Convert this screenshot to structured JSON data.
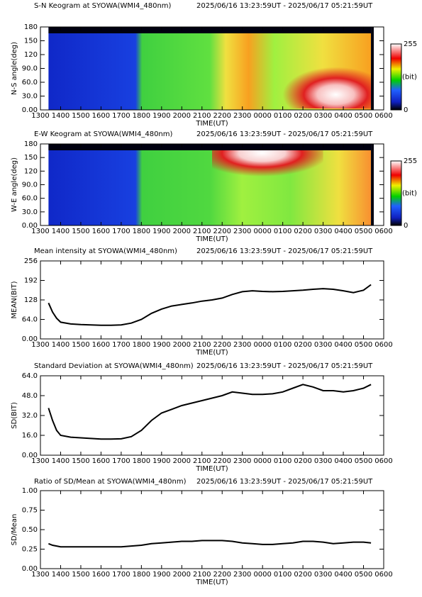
{
  "chart_data": [
    {
      "type": "keogram",
      "title": "S-N Keogram at SYOWA(WMI4_480nm)",
      "subtitle": "2025/06/16 13:23:59UT - 2025/06/17 05:21:59UT",
      "xlabel": "TIME(UT)",
      "ylabel": "N-S angle(deg)",
      "xlim": [
        13,
        30
      ],
      "xticks": [
        {
          "value": 13,
          "label": "1300"
        },
        {
          "value": 14,
          "label": "1400"
        },
        {
          "value": 15,
          "label": "1500"
        },
        {
          "value": 16,
          "label": "1600"
        },
        {
          "value": 17,
          "label": "1700"
        },
        {
          "value": 18,
          "label": "1800"
        },
        {
          "value": 19,
          "label": "1900"
        },
        {
          "value": 20,
          "label": "2000"
        },
        {
          "value": 21,
          "label": "2100"
        },
        {
          "value": 22,
          "label": "2200"
        },
        {
          "value": 23,
          "label": "2300"
        },
        {
          "value": 24,
          "label": "0000"
        },
        {
          "value": 25,
          "label": "0100"
        },
        {
          "value": 26,
          "label": "0200"
        },
        {
          "value": 27,
          "label": "0300"
        },
        {
          "value": 28,
          "label": "0400"
        },
        {
          "value": 29,
          "label": "0500"
        },
        {
          "value": 30,
          "label": "0600"
        }
      ],
      "ylim": [
        0,
        180
      ],
      "yticks": [
        {
          "value": 0,
          "label": "0.00"
        },
        {
          "value": 30,
          "label": "30.0"
        },
        {
          "value": 60,
          "label": "60.0"
        },
        {
          "value": 90,
          "label": "90.0"
        },
        120,
        150,
        180
      ],
      "colorbar_ticks": [
        0,
        255
      ],
      "colorbar_label": "(bit)"
    },
    {
      "type": "keogram",
      "title": "E-W Keogram at SYOWA(WMI4_480nm)",
      "subtitle": "2025/06/16 13:23:59UT - 2025/06/17 05:21:59UT",
      "xlabel": "TIME(UT)",
      "ylabel": "W-E angle(deg)",
      "xlim": [
        13,
        30
      ],
      "xticks": [
        {
          "value": 13,
          "label": "1300"
        },
        {
          "value": 14,
          "label": "1400"
        },
        {
          "value": 15,
          "label": "1500"
        },
        {
          "value": 16,
          "label": "1600"
        },
        {
          "value": 17,
          "label": "1700"
        },
        {
          "value": 18,
          "label": "1800"
        },
        {
          "value": 19,
          "label": "1900"
        },
        {
          "value": 20,
          "label": "2000"
        },
        {
          "value": 21,
          "label": "2100"
        },
        {
          "value": 22,
          "label": "2200"
        },
        {
          "value": 23,
          "label": "2300"
        },
        {
          "value": 24,
          "label": "0000"
        },
        {
          "value": 25,
          "label": "0100"
        },
        {
          "value": 26,
          "label": "0200"
        },
        {
          "value": 27,
          "label": "0300"
        },
        {
          "value": 28,
          "label": "0400"
        },
        {
          "value": 29,
          "label": "0500"
        },
        {
          "value": 30,
          "label": "0600"
        }
      ],
      "ylim": [
        0,
        180
      ],
      "yticks": [
        {
          "value": 0,
          "label": "0.00"
        },
        {
          "value": 30,
          "label": "30.0"
        },
        {
          "value": 60,
          "label": "60.0"
        },
        {
          "value": 90,
          "label": "90.0"
        },
        120,
        150,
        180
      ],
      "colorbar_ticks": [
        0,
        255
      ],
      "colorbar_label": "(bit)"
    },
    {
      "type": "line",
      "title": "Mean intensity at SYOWA(WMI4_480nm)",
      "subtitle": "2025/06/16 13:23:59UT - 2025/06/17 05:21:59UT",
      "xlabel": "TIME(UT)",
      "ylabel": "MEAN(BIT)",
      "color": "#000000",
      "xlim": [
        13,
        30
      ],
      "xticks": [
        {
          "value": 13,
          "label": "1300"
        },
        {
          "value": 14,
          "label": "1400"
        },
        {
          "value": 15,
          "label": "1500"
        },
        {
          "value": 16,
          "label": "1600"
        },
        {
          "value": 17,
          "label": "1700"
        },
        {
          "value": 18,
          "label": "1800"
        },
        {
          "value": 19,
          "label": "1900"
        },
        {
          "value": 20,
          "label": "2000"
        },
        {
          "value": 21,
          "label": "2100"
        },
        {
          "value": 22,
          "label": "2200"
        },
        {
          "value": 23,
          "label": "2300"
        },
        {
          "value": 24,
          "label": "0000"
        },
        {
          "value": 25,
          "label": "0100"
        },
        {
          "value": 26,
          "label": "0200"
        },
        {
          "value": 27,
          "label": "0300"
        },
        {
          "value": 28,
          "label": "0400"
        },
        {
          "value": 29,
          "label": "0500"
        },
        {
          "value": 30,
          "label": "0600"
        }
      ],
      "ylim": [
        0,
        256
      ],
      "yticks": [
        {
          "value": 0,
          "label": "0.00"
        },
        {
          "value": 64,
          "label": "64.0"
        },
        128,
        192,
        256
      ],
      "x": [
        13.4,
        13.6,
        13.8,
        14,
        14.5,
        15,
        15.5,
        16,
        16.5,
        17,
        17.5,
        18,
        18.5,
        19,
        19.5,
        20,
        20.5,
        21,
        21.5,
        22,
        22.5,
        23,
        23.5,
        24,
        24.5,
        25,
        25.5,
        26,
        26.5,
        27,
        27.5,
        28,
        28.5,
        29,
        29.37
      ],
      "values": [
        118,
        88,
        68,
        55,
        49,
        47,
        46,
        45,
        45,
        46,
        52,
        64,
        84,
        98,
        108,
        113,
        118,
        124,
        128,
        134,
        146,
        155,
        158,
        156,
        155,
        156,
        158,
        160,
        163,
        165,
        163,
        158,
        152,
        160,
        178
      ]
    },
    {
      "type": "line",
      "title": "Standard Deviation at SYOWA(WMI4_480nm)",
      "subtitle": "2025/06/16 13:23:59UT - 2025/06/17 05:21:59UT",
      "xlabel": "TIME(UT)",
      "ylabel": "SD(BIT)",
      "color": "#000000",
      "xlim": [
        13,
        30
      ],
      "xticks": [
        {
          "value": 13,
          "label": "1300"
        },
        {
          "value": 14,
          "label": "1400"
        },
        {
          "value": 15,
          "label": "1500"
        },
        {
          "value": 16,
          "label": "1600"
        },
        {
          "value": 17,
          "label": "1700"
        },
        {
          "value": 18,
          "label": "1800"
        },
        {
          "value": 19,
          "label": "1900"
        },
        {
          "value": 20,
          "label": "2000"
        },
        {
          "value": 21,
          "label": "2100"
        },
        {
          "value": 22,
          "label": "2200"
        },
        {
          "value": 23,
          "label": "2300"
        },
        {
          "value": 24,
          "label": "0000"
        },
        {
          "value": 25,
          "label": "0100"
        },
        {
          "value": 26,
          "label": "0200"
        },
        {
          "value": 27,
          "label": "0300"
        },
        {
          "value": 28,
          "label": "0400"
        },
        {
          "value": 29,
          "label": "0500"
        },
        {
          "value": 30,
          "label": "0600"
        }
      ],
      "ylim": [
        0,
        64
      ],
      "yticks": [
        {
          "value": 0,
          "label": "0.00"
        },
        {
          "value": 16,
          "label": "16.0"
        },
        {
          "value": 32,
          "label": "32.0"
        },
        {
          "value": 48,
          "label": "48.0"
        },
        {
          "value": 64,
          "label": "64.0"
        }
      ],
      "x": [
        13.4,
        13.6,
        13.8,
        14,
        14.5,
        15,
        15.5,
        16,
        16.5,
        17,
        17.5,
        18,
        18.5,
        19,
        19.5,
        20,
        20.5,
        21,
        21.5,
        22,
        22.5,
        23,
        23.5,
        24,
        24.5,
        25,
        25.5,
        26,
        26.5,
        27,
        27.5,
        28,
        28.5,
        29,
        29.37
      ],
      "values": [
        38,
        28,
        20,
        16,
        14.5,
        14,
        13.5,
        13,
        13,
        13.2,
        15,
        20,
        28,
        34,
        37,
        40,
        42,
        44,
        46,
        48,
        51,
        50,
        49,
        49,
        49.5,
        51,
        54,
        57,
        55,
        52,
        52,
        51,
        52,
        54,
        57
      ]
    },
    {
      "type": "line",
      "title": "Ratio of SD/Mean at SYOWA(WMI4_480nm)",
      "subtitle": "2025/06/16 13:23:59UT - 2025/06/17 05:21:59UT",
      "xlabel": "TIME(UT)",
      "ylabel": "SD/Mean",
      "color": "#000000",
      "xlim": [
        13,
        30
      ],
      "xticks": [
        {
          "value": 13,
          "label": "1300"
        },
        {
          "value": 14,
          "label": "1400"
        },
        {
          "value": 15,
          "label": "1500"
        },
        {
          "value": 16,
          "label": "1600"
        },
        {
          "value": 17,
          "label": "1700"
        },
        {
          "value": 18,
          "label": "1800"
        },
        {
          "value": 19,
          "label": "1900"
        },
        {
          "value": 20,
          "label": "2000"
        },
        {
          "value": 21,
          "label": "2100"
        },
        {
          "value": 22,
          "label": "2200"
        },
        {
          "value": 23,
          "label": "2300"
        },
        {
          "value": 24,
          "label": "0000"
        },
        {
          "value": 25,
          "label": "0100"
        },
        {
          "value": 26,
          "label": "0200"
        },
        {
          "value": 27,
          "label": "0300"
        },
        {
          "value": 28,
          "label": "0400"
        },
        {
          "value": 29,
          "label": "0500"
        },
        {
          "value": 30,
          "label": "0600"
        }
      ],
      "ylim": [
        0,
        1
      ],
      "yticks": [
        {
          "value": 0,
          "label": "0.00"
        },
        {
          "value": 0.25,
          "label": "0.25"
        },
        {
          "value": 0.5,
          "label": "0.50"
        },
        {
          "value": 0.75,
          "label": "0.75"
        },
        {
          "value": 1,
          "label": "1.00"
        }
      ],
      "x": [
        13.4,
        13.6,
        13.8,
        14,
        14.5,
        15,
        15.5,
        16,
        16.5,
        17,
        17.5,
        18,
        18.5,
        19,
        19.5,
        20,
        20.5,
        21,
        21.5,
        22,
        22.5,
        23,
        23.5,
        24,
        24.5,
        25,
        25.5,
        26,
        26.5,
        27,
        27.5,
        28,
        28.5,
        29,
        29.37
      ],
      "values": [
        0.32,
        0.3,
        0.29,
        0.28,
        0.28,
        0.28,
        0.28,
        0.28,
        0.28,
        0.28,
        0.29,
        0.3,
        0.32,
        0.33,
        0.34,
        0.35,
        0.35,
        0.36,
        0.36,
        0.36,
        0.35,
        0.33,
        0.32,
        0.31,
        0.31,
        0.32,
        0.33,
        0.35,
        0.35,
        0.34,
        0.32,
        0.33,
        0.34,
        0.34,
        0.33
      ]
    }
  ]
}
